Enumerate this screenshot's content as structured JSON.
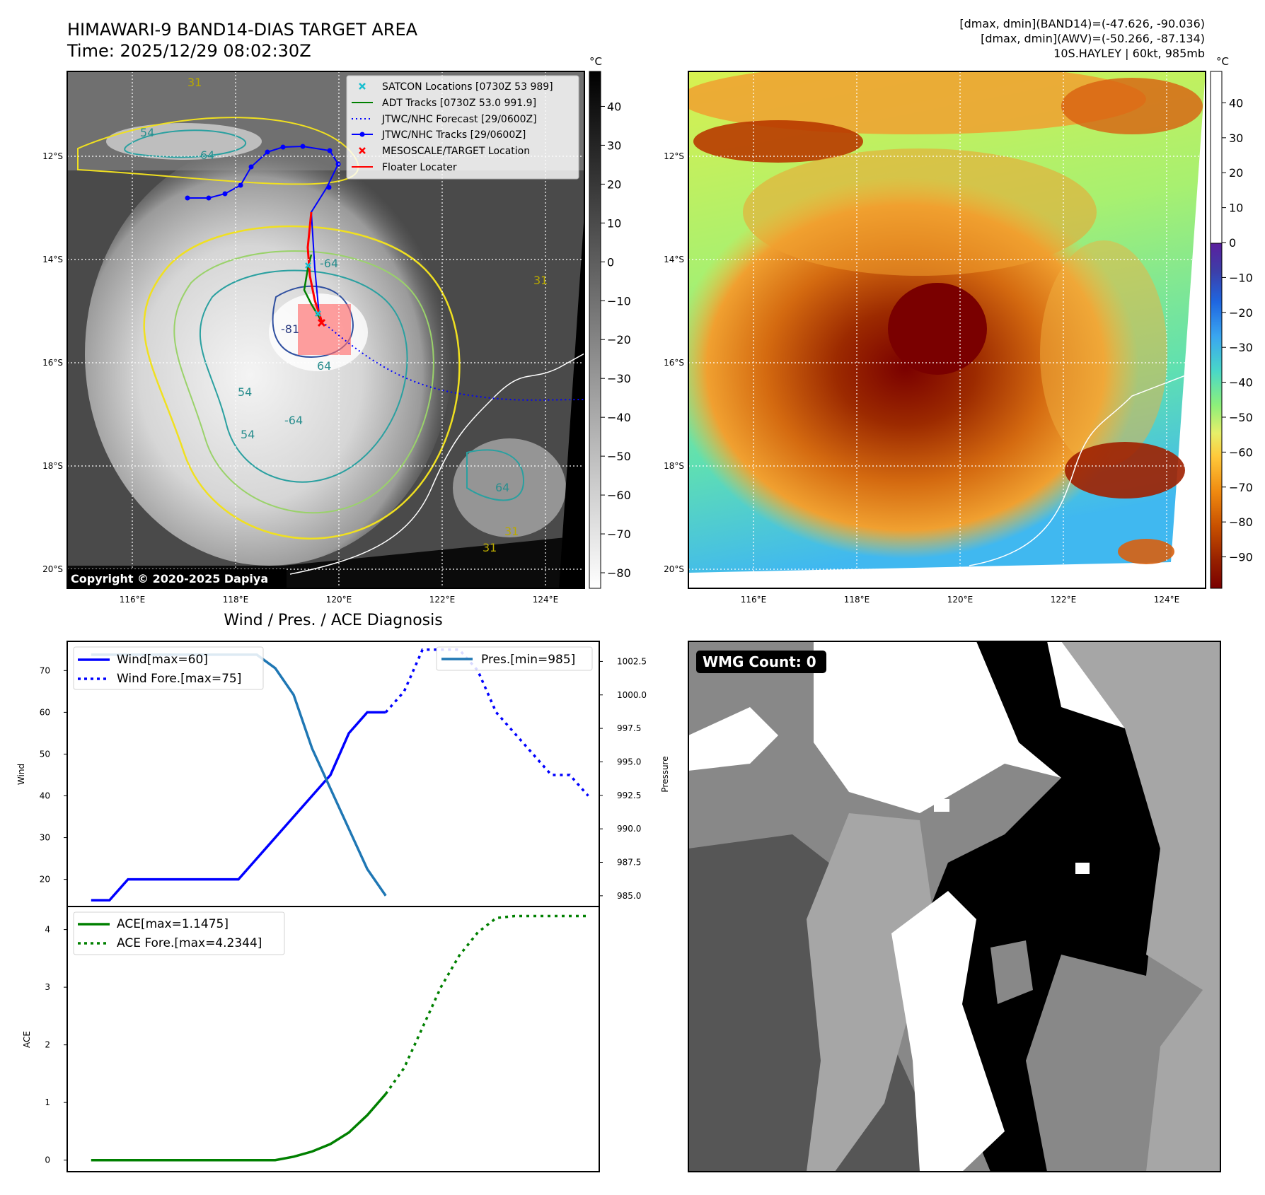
{
  "header": {
    "title_line1": "HIMAWARI-9 BAND14-DIAS TARGET AREA",
    "title_line2": "Time: 2025/12/29 08:02:30Z",
    "info_line1": "[dmax, dmin](BAND14)=(-47.626, -90.036)",
    "info_line2": "[dmax, dmin](AWV)=(-50.266, -87.134)",
    "info_line3": "10S.HAYLEY | 60kt, 985mb"
  },
  "panel_ir": {
    "lat_labels": [
      "12°S",
      "14°S",
      "16°S",
      "18°S",
      "20°S"
    ],
    "lon_labels": [
      "116°E",
      "118°E",
      "120°E",
      "122°E",
      "124°E"
    ],
    "contour_labels": [
      "-81",
      "-64",
      "54",
      "64",
      "-64",
      "54",
      "64",
      "31",
      "31",
      "54",
      "64",
      "31",
      "31"
    ],
    "copyright": "Copyright © 2020-2025 Dapiya",
    "colorbar_unit": "°C",
    "colorbar_ticks": [
      "40",
      "30",
      "20",
      "10",
      "0",
      "−10",
      "−20",
      "−30",
      "−40",
      "−50",
      "−60",
      "−70",
      "−80"
    ],
    "legend": [
      {
        "label": "SATCON Locations [0730Z 53 989]",
        "color": "#17becf"
      },
      {
        "label": "ADT Tracks [0730Z 53.0 991.9]",
        "color": "#008000"
      },
      {
        "label": "JTWC/NHC Forecast [29/0600Z]",
        "color": "#0000ff"
      },
      {
        "label": "JTWC/NHC Tracks [29/0600Z]",
        "color": "#0000ff"
      },
      {
        "label": "MESOSCALE/TARGET Location",
        "color": "#ff0000"
      },
      {
        "label": "Floater Locater",
        "color": "#ff0000"
      }
    ]
  },
  "panel_awv": {
    "lat_labels": [
      "12°S",
      "14°S",
      "16°S",
      "18°S",
      "20°S"
    ],
    "lon_labels": [
      "116°E",
      "118°E",
      "120°E",
      "122°E",
      "124°E"
    ],
    "colorbar_unit": "°C",
    "colorbar_ticks": [
      "40",
      "30",
      "20",
      "10",
      "0",
      "−10",
      "−20",
      "−30",
      "−40",
      "−50",
      "−60",
      "−70",
      "−80",
      "−90"
    ]
  },
  "panel_wmg": {
    "badge": "WMG Count: 0"
  },
  "chart_data": [
    {
      "type": "line",
      "title": "Wind / Pres. / ACE Diagnosis",
      "ylabel": "Wind",
      "y2label": "Pressure",
      "ylim": [
        13.5,
        77
      ],
      "y2lim": [
        984.2,
        1004
      ],
      "yticks": [
        "20",
        "30",
        "40",
        "50",
        "60",
        "70"
      ],
      "y2ticks": [
        "985.0",
        "987.5",
        "990.0",
        "992.5",
        "995.0",
        "997.5",
        "1000.0",
        "1002.5"
      ],
      "x_index": [
        0,
        1,
        2,
        3,
        4,
        5,
        6,
        7,
        8,
        9,
        10,
        11,
        12,
        13,
        14,
        15,
        16,
        17,
        18,
        19,
        20,
        21,
        22,
        23,
        24,
        25,
        26,
        27
      ],
      "series": [
        {
          "name": "Wind[max=60]",
          "style": "solid",
          "color": "#0000ff",
          "axis": "left",
          "x": [
            0,
            1,
            2,
            3,
            4,
            5,
            6,
            7,
            8,
            9,
            10,
            11,
            12,
            13,
            14,
            15,
            16
          ],
          "values": [
            15,
            15,
            20,
            20,
            20,
            20,
            20,
            20,
            20,
            25,
            30,
            35,
            40,
            45,
            55,
            60,
            60
          ]
        },
        {
          "name": "Wind Fore.[max=75]",
          "style": "dotted",
          "color": "#0000ff",
          "axis": "left",
          "x": [
            16,
            17,
            18,
            19,
            20,
            21,
            22,
            23,
            24,
            25,
            26,
            27
          ],
          "values": [
            60,
            65,
            75,
            75,
            75,
            70,
            60,
            55,
            50,
            45,
            45,
            40
          ]
        },
        {
          "name": "Pres.[min=985]",
          "style": "solid",
          "color": "#1f77b4",
          "axis": "right",
          "x": [
            0,
            1,
            2,
            3,
            4,
            5,
            6,
            7,
            8,
            9,
            10,
            11,
            12,
            13,
            14,
            15,
            16
          ],
          "values": [
            1003,
            1003,
            1003,
            1003,
            1003,
            1003,
            1003,
            1003,
            1003,
            1003,
            1002,
            1000,
            996,
            993,
            990,
            987,
            985
          ]
        }
      ]
    },
    {
      "type": "line",
      "ylabel": "ACE",
      "ylim": [
        -0.2,
        4.4
      ],
      "yticks": [
        "0",
        "1",
        "2",
        "3",
        "4"
      ],
      "series": [
        {
          "name": "ACE[max=1.1475]",
          "style": "solid",
          "color": "#008000",
          "x": [
            0,
            1,
            2,
            3,
            4,
            5,
            6,
            7,
            8,
            9,
            10,
            11,
            12,
            13,
            14,
            15,
            16
          ],
          "values": [
            0,
            0,
            0,
            0,
            0,
            0,
            0,
            0,
            0,
            0,
            0,
            0.06,
            0.15,
            0.28,
            0.48,
            0.78,
            1.1475
          ]
        },
        {
          "name": "ACE Fore.[max=4.2344]",
          "style": "dotted",
          "color": "#008000",
          "x": [
            16,
            17,
            18,
            19,
            20,
            21,
            22,
            23,
            24,
            25,
            26,
            27
          ],
          "values": [
            1.1475,
            1.6,
            2.3,
            3.0,
            3.55,
            3.95,
            4.2,
            4.2344,
            4.2344,
            4.2344,
            4.2344,
            4.2344
          ]
        }
      ]
    }
  ]
}
